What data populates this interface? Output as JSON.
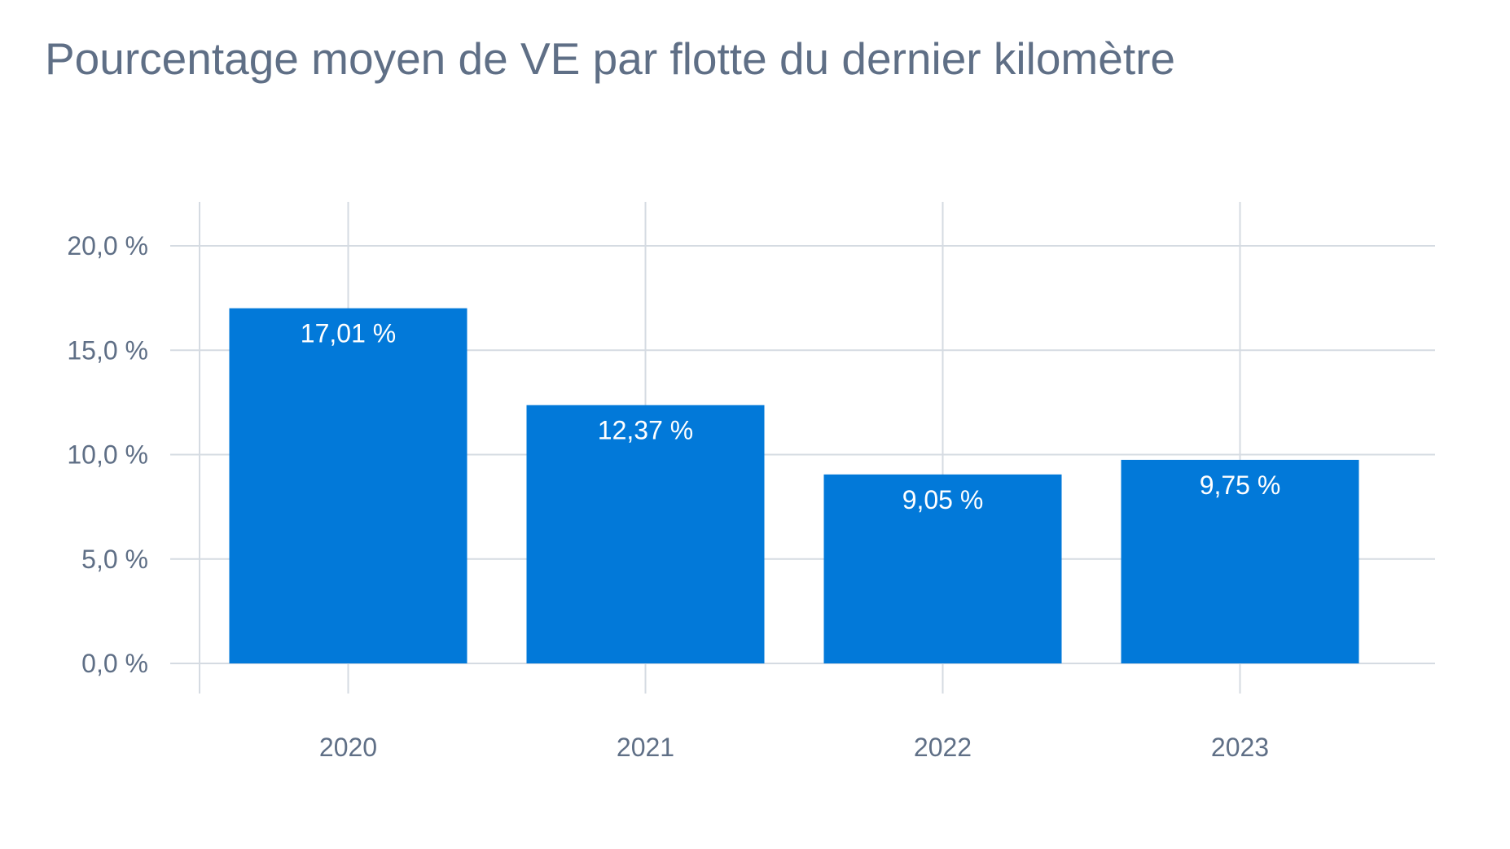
{
  "colors": {
    "bar": "#0279d9",
    "grid": "#d5dbe2",
    "text": "#5f6f86",
    "data_label": "#ffffff"
  },
  "chart_data": {
    "type": "bar",
    "title": "Pourcentage moyen de VE par flotte du dernier kilomètre",
    "xlabel": "",
    "ylabel": "",
    "categories": [
      "2020",
      "2021",
      "2022",
      "2023"
    ],
    "series": [
      {
        "values": [
          17.01,
          12.37,
          9.05,
          9.75
        ]
      }
    ],
    "data_labels": [
      "17,01 %",
      "12,37 %",
      "9,05 %",
      "9,75 %"
    ],
    "y_ticks": [
      0,
      5,
      10,
      15,
      20
    ],
    "y_tick_labels": [
      "0,0 %",
      "5,0 %",
      "10,0 %",
      "15,0 %",
      "20,0 %"
    ],
    "ylim": [
      0,
      20
    ],
    "grid": true,
    "legend": "none"
  }
}
